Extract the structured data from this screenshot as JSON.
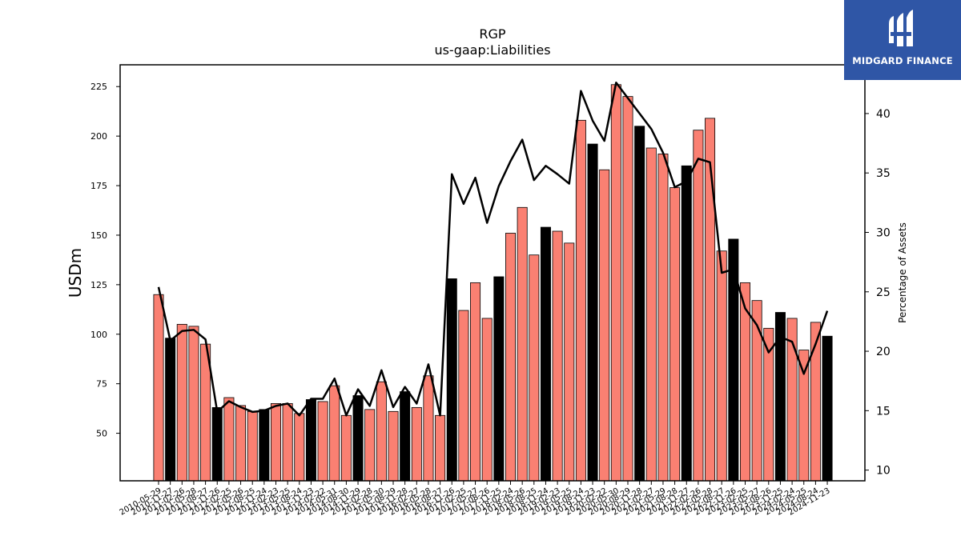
{
  "logo": {
    "text": "MIDGARD FINANCE"
  },
  "chart_data": {
    "type": "bar",
    "title": "RGP",
    "subtitle": "us-gaap:Liabilities",
    "ylabel": "USDm",
    "y2label": "Percentage of Assets",
    "ylim": [
      26,
      236
    ],
    "y2lim": [
      9.1,
      44.1
    ],
    "yticks": [
      50,
      75,
      100,
      125,
      150,
      175,
      200,
      225
    ],
    "y2ticks": [
      10,
      15,
      20,
      25,
      30,
      35,
      40
    ],
    "colors": {
      "quarterly": "#fa8072",
      "annual": "#000000",
      "line": "#000000"
    },
    "categories": [
      "2010-05-29",
      "2010-11-27",
      "2011-02-26",
      "2011-05-28",
      "2011-08-27",
      "2011-11-26",
      "2012-02-25",
      "2012-05-26",
      "2012-08-25",
      "2012-11-24",
      "2013-02-23",
      "2013-05-25",
      "2013-08-24",
      "2013-11-23",
      "2014-02-22",
      "2014-05-31",
      "2014-08-30",
      "2014-11-29",
      "2015-02-28",
      "2015-05-30",
      "2015-08-29",
      "2015-11-28",
      "2016-02-27",
      "2016-05-28",
      "2016-08-27",
      "2016-11-26",
      "2017-02-25",
      "2017-05-27",
      "2017-08-26",
      "2017-11-25",
      "2018-02-24",
      "2018-05-26",
      "2018-08-25",
      "2018-11-24",
      "2019-02-23",
      "2019-05-25",
      "2019-08-24",
      "2019-11-23",
      "2020-02-22",
      "2020-05-30",
      "2020-08-29",
      "2020-11-28",
      "2021-02-27",
      "2021-05-29",
      "2021-08-28",
      "2021-11-27",
      "2022-02-26",
      "2022-05-28",
      "2022-08-27",
      "2022-11-26",
      "2023-02-25",
      "2023-05-27",
      "2023-08-26",
      "2023-11-25",
      "2024-02-24",
      "2024-05-25",
      "2024-08-24",
      "2024-11-23"
    ],
    "series": [
      {
        "kind": "bar",
        "values": [
          120,
          98,
          105,
          104,
          95,
          63,
          68,
          64,
          61,
          62,
          65,
          65,
          60,
          67,
          66,
          74,
          59,
          69,
          62,
          76,
          61,
          71,
          63,
          79,
          59,
          128,
          112,
          126,
          108,
          129,
          151,
          164,
          140,
          154,
          152,
          146,
          208,
          196,
          183,
          226,
          220,
          205,
          194,
          191,
          174,
          185,
          203,
          209,
          142,
          148,
          126,
          117,
          103,
          111,
          108,
          92,
          106,
          99
        ],
        "annual": [
          false,
          true,
          false,
          false,
          false,
          true,
          false,
          false,
          false,
          true,
          false,
          false,
          false,
          true,
          false,
          false,
          false,
          true,
          false,
          false,
          false,
          true,
          false,
          false,
          false,
          true,
          false,
          false,
          false,
          true,
          false,
          false,
          false,
          true,
          false,
          false,
          false,
          true,
          false,
          false,
          false,
          true,
          false,
          false,
          false,
          true,
          false,
          false,
          false,
          true,
          false,
          false,
          false,
          true,
          false,
          false,
          false,
          true
        ]
      },
      {
        "kind": "line",
        "axis": "right",
        "values": [
          25.4,
          20.9,
          21.7,
          21.8,
          21.0,
          14.9,
          15.8,
          15.3,
          14.9,
          15.0,
          15.4,
          15.6,
          14.6,
          16.0,
          16.0,
          17.7,
          14.6,
          16.8,
          15.4,
          18.4,
          15.3,
          17.0,
          15.6,
          18.9,
          14.6,
          34.9,
          32.4,
          34.6,
          30.8,
          33.9,
          36.0,
          37.8,
          34.4,
          35.6,
          34.9,
          34.1,
          41.9,
          39.4,
          37.7,
          42.6,
          41.3,
          40.0,
          38.7,
          36.7,
          33.8,
          34.3,
          36.2,
          35.9,
          26.6,
          26.9,
          23.6,
          22.2,
          19.9,
          21.2,
          20.8,
          18.1,
          20.6,
          23.4
        ]
      }
    ]
  }
}
